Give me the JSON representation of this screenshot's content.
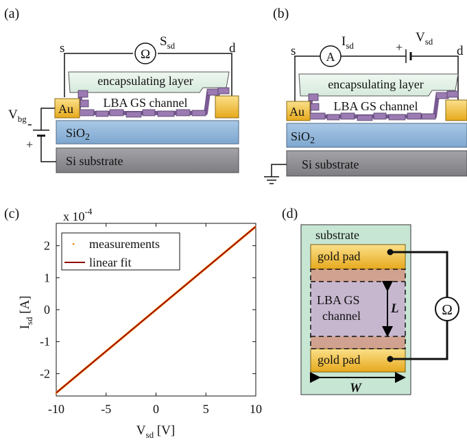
{
  "panels": {
    "a": {
      "label": "(a)",
      "source": "s",
      "drain": "d",
      "meter_symbol": "Ω",
      "meter_label": "S",
      "meter_label_sub": "sd",
      "encap": "encapsulating layer",
      "channel": "LBA GS channel",
      "au": "Au",
      "sio2": "SiO",
      "sio2_sub": "2",
      "si": "Si substrate",
      "vbg": "V",
      "vbg_sub": "bg",
      "minus": "-",
      "plus": "+"
    },
    "b": {
      "label": "(b)",
      "source": "s",
      "drain": "d",
      "meter_symbol": "A",
      "current_label": "I",
      "current_sub": "sd",
      "voltage_label": "V",
      "voltage_sub": "sd",
      "plus": "+",
      "encap": "encapsulating layer",
      "channel": "LBA GS channel",
      "au": "Au",
      "sio2": "SiO",
      "sio2_sub": "2",
      "si": "Si substrate"
    },
    "c": {
      "label": "(c)"
    },
    "d": {
      "label": "(d)",
      "substrate": "substrate",
      "pad_top": "gold pad",
      "pad_bottom": "gold pad",
      "channel_line1": "LBA GS",
      "channel_line2": "channel",
      "length": "L",
      "width": "W",
      "ohm": "Ω"
    }
  },
  "colors": {
    "encap": "#e2f0e6",
    "channel": "#9b7bb2",
    "gold": "#f2c23a",
    "sio2": "#8db3d8",
    "si": "#8c8c91",
    "substrate_green": "#c7e6d3",
    "fit_line": "#8b0000",
    "measure": "#ff8c1a"
  },
  "chart_data": {
    "type": "line",
    "xlabel": "V",
    "xlabel_sub": "sd",
    "xlabel_unit": " [V]",
    "ylabel": "I",
    "ylabel_sub": "sd",
    "ylabel_unit": " [A]",
    "multiplier_text": "x 10",
    "multiplier_exp": "-4",
    "xlim": [
      -10,
      10
    ],
    "ylim": [
      -2.7,
      2.7
    ],
    "xticks": [
      -10,
      -5,
      0,
      5,
      10
    ],
    "yticks": [
      -2,
      -1,
      0,
      1,
      2
    ],
    "legend_position": "top-left",
    "series": [
      {
        "name": "measurements",
        "style": "points",
        "x": [
          -10,
          -7.5,
          -5,
          -2.5,
          0,
          2.5,
          5,
          7.5,
          10
        ],
        "y": [
          -2.6,
          -1.95,
          -1.3,
          -0.65,
          0,
          0.65,
          1.3,
          1.95,
          2.6
        ]
      },
      {
        "name": "linear fit",
        "style": "line",
        "x": [
          -10,
          10
        ],
        "y": [
          -2.6,
          2.6
        ]
      }
    ]
  }
}
